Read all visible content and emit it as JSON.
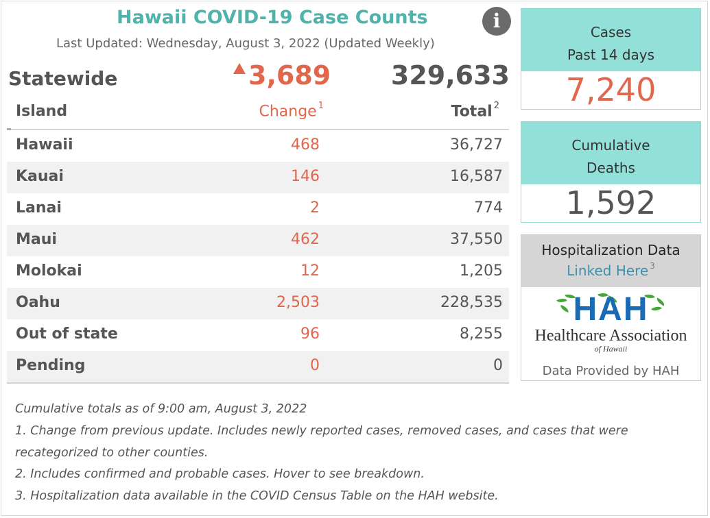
{
  "header": {
    "title": "Hawaii COVID-19 Case Counts",
    "subtitle": "Last Updated: Wednesday, August 3, 2022 (Updated Weekly)",
    "info_icon": "info-icon"
  },
  "statewide": {
    "label": "Statewide",
    "change": "3,689",
    "change_direction": "up",
    "total": "329,633"
  },
  "table": {
    "columns": {
      "island": "Island",
      "change": "Change",
      "change_sup": "1",
      "total": "Total",
      "total_sup": "2"
    },
    "rows": [
      {
        "island": "Hawaii",
        "change": "468",
        "total": "36,727"
      },
      {
        "island": "Kauai",
        "change": "146",
        "total": "16,587"
      },
      {
        "island": "Lanai",
        "change": "2",
        "total": "774"
      },
      {
        "island": "Maui",
        "change": "462",
        "total": "37,550"
      },
      {
        "island": "Molokai",
        "change": "12",
        "total": "1,205"
      },
      {
        "island": "Oahu",
        "change": "2,503",
        "total": "228,535"
      },
      {
        "island": "Out of state",
        "change": "96",
        "total": "8,255"
      },
      {
        "island": "Pending",
        "change": "0",
        "total": "0"
      }
    ]
  },
  "cases_card": {
    "line1": "Cases",
    "line2": "Past 14 days",
    "value": "7,240"
  },
  "deaths_card": {
    "line1": "Cumulative",
    "line2": "Deaths",
    "value": "1,592"
  },
  "hospitalization": {
    "title": "Hospitalization Data",
    "link": "Linked Here",
    "link_sup": "3",
    "logo_letters": "HAH",
    "logo_line1": "Healthcare Association",
    "logo_line2": "of Hawaii",
    "provided": "Data Provided by HAH"
  },
  "notes": [
    "Cumulative totals as of 9:00 am, August 3, 2022",
    "1. Change from previous update. Includes newly reported cases, removed cases, and cases that were",
    "recategorized to other counties.",
    "2. Includes confirmed and probable cases. Hover to see breakdown.",
    "3. Hospitalization data available in the COVID Census Table on the HAH website."
  ],
  "colors": {
    "accent": "#4fb3ab",
    "change": "#e0664c",
    "card_head": "#93e0d8",
    "link": "#3f8fb0"
  }
}
